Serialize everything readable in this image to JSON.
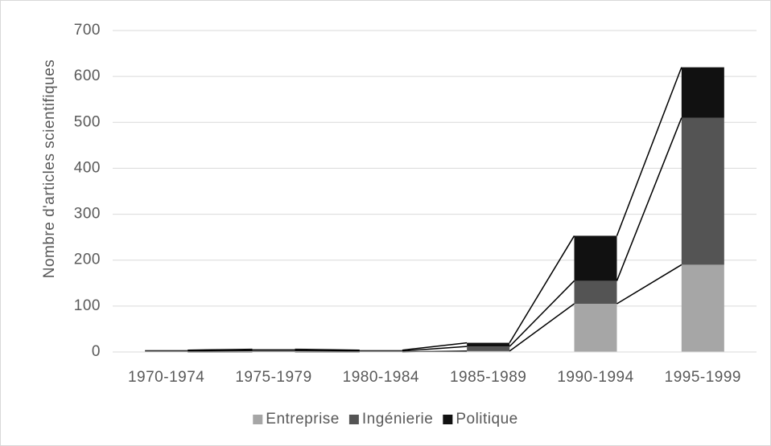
{
  "chart_data": {
    "type": "bar",
    "stacked": true,
    "series_lines": true,
    "y_label": "Nombre d'articles scientifiques",
    "categories": [
      "1970-1974",
      "1975-1979",
      "1980-1984",
      "1985-1989",
      "1990-1994",
      "1995-1999"
    ],
    "series": [
      {
        "name": "Entreprise",
        "color": "#a6a6a6",
        "values": [
          0,
          0,
          0,
          2,
          105,
          190
        ]
      },
      {
        "name": "Ingénierie",
        "color": "#545454",
        "values": [
          2,
          3,
          2,
          10,
          50,
          320
        ]
      },
      {
        "name": "Politique",
        "color": "#111111",
        "values": [
          2,
          3,
          2,
          8,
          98,
          110
        ]
      }
    ],
    "ylim": [
      0,
      700
    ],
    "yticks": [
      0,
      100,
      200,
      300,
      400,
      500,
      600,
      700
    ],
    "grid": true,
    "legend": "bottom"
  }
}
